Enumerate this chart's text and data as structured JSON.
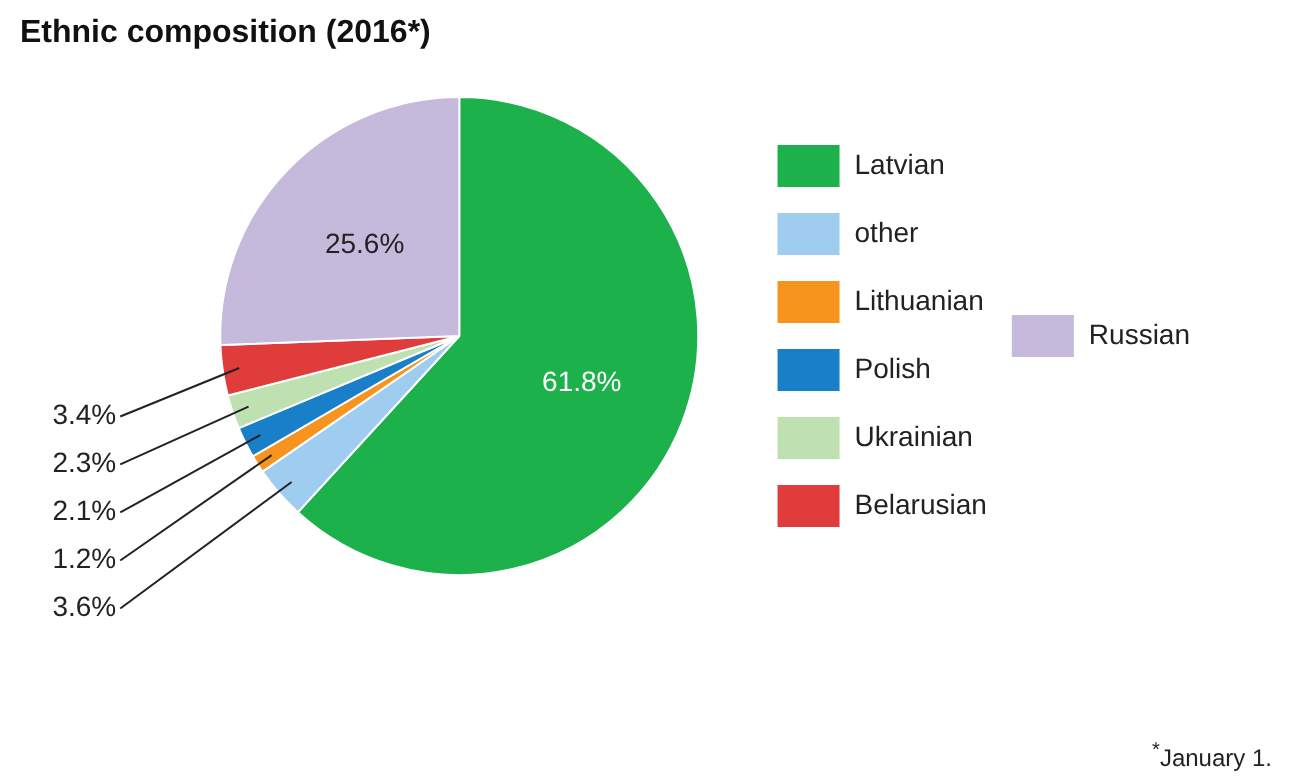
{
  "chart_data": {
    "type": "pie",
    "title": "Ethnic composition (2016*)",
    "categories": [
      "Latvian",
      "other",
      "Lithuanian",
      "Polish",
      "Ukrainian",
      "Belarusian",
      "Russian"
    ],
    "values": [
      61.8,
      3.6,
      1.2,
      2.1,
      2.3,
      3.4,
      25.6
    ],
    "colors": [
      "#1db14b",
      "#9fcdf0",
      "#f7941d",
      "#1a7fc9",
      "#bfe0b0",
      "#e03c3c",
      "#c5b9dc"
    ],
    "value_labels": [
      "61.8%",
      "3.6%",
      "1.2%",
      "2.1%",
      "2.3%",
      "3.4%",
      "25.6%"
    ],
    "legend": "right",
    "annotations": [
      "$^{*}$January 1."
    ]
  }
}
